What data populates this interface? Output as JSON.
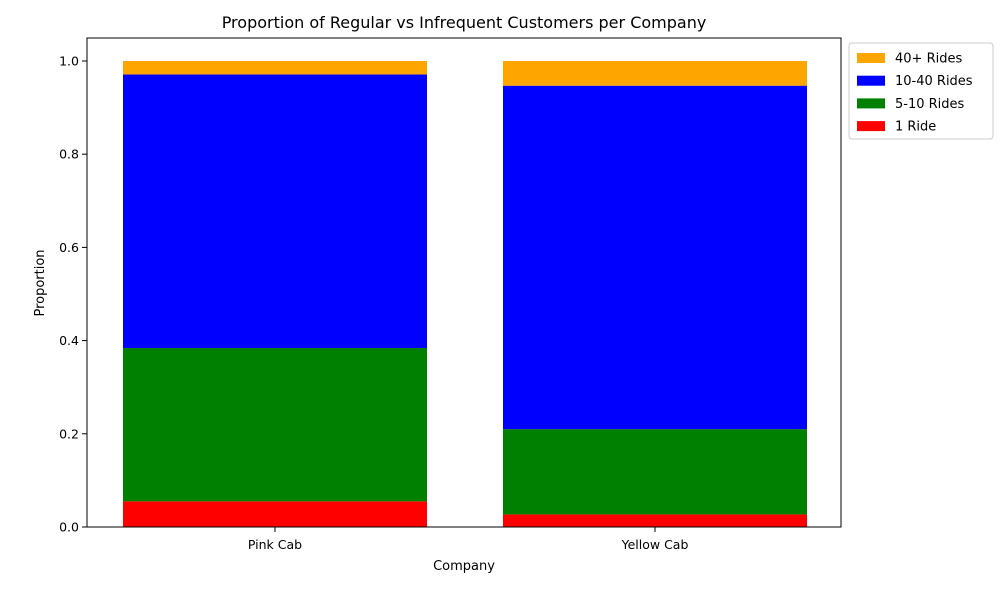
{
  "chart_data": {
    "type": "bar",
    "stacked": true,
    "title": "Proportion of Regular vs Infrequent Customers per Company",
    "xlabel": "Company",
    "ylabel": "Proportion",
    "categories": [
      "Pink Cab",
      "Yellow Cab"
    ],
    "series": [
      {
        "name": "1 Ride",
        "color": "#ff0000",
        "values": [
          0.055,
          0.027
        ]
      },
      {
        "name": "5-10 Rides",
        "color": "#008000",
        "values": [
          0.329,
          0.183
        ]
      },
      {
        "name": "10-40 Rides",
        "color": "#0000ff",
        "values": [
          0.587,
          0.737
        ]
      },
      {
        "name": "40+ Rides",
        "color": "#ffa500",
        "values": [
          0.029,
          0.053
        ]
      }
    ],
    "ylim": [
      0,
      1.05
    ],
    "yticks": [
      "0.0",
      "0.2",
      "0.4",
      "0.6",
      "0.8",
      "1.0"
    ],
    "legend_order": [
      "40+ Rides",
      "10-40 Rides",
      "5-10 Rides",
      "1 Ride"
    ],
    "legend_position": "outside-upper-right",
    "grid": false
  }
}
